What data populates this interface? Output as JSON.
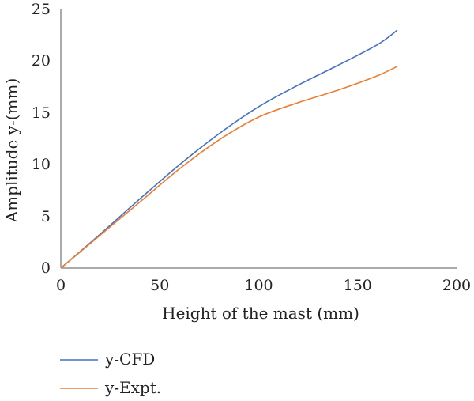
{
  "chart_data": {
    "type": "line",
    "xlabel": "Height of the mast (mm)",
    "ylabel": "Amplitude y-(mm)",
    "xlim": [
      0,
      200
    ],
    "ylim": [
      0,
      25
    ],
    "xticks": [
      "0",
      "50",
      "100",
      "150",
      "200"
    ],
    "yticks": [
      "0",
      "5",
      "10",
      "15",
      "20",
      "25"
    ],
    "grid": false,
    "legend_position": "bottom-left",
    "series": [
      {
        "name": "y-CFD",
        "color": "#4472C4",
        "x": [
          0,
          20,
          40,
          60,
          80,
          100,
          120,
          140,
          160,
          170
        ],
        "y": [
          0,
          3.3,
          6.7,
          10.0,
          13.0,
          15.6,
          17.7,
          19.6,
          21.6,
          23.0
        ]
      },
      {
        "name": "y-Expt.",
        "color": "#ED7D31",
        "x": [
          0,
          20,
          40,
          60,
          80,
          100,
          120,
          140,
          160,
          170
        ],
        "y": [
          0,
          3.2,
          6.4,
          9.6,
          12.4,
          14.6,
          16.0,
          17.2,
          18.6,
          19.5
        ]
      }
    ]
  }
}
